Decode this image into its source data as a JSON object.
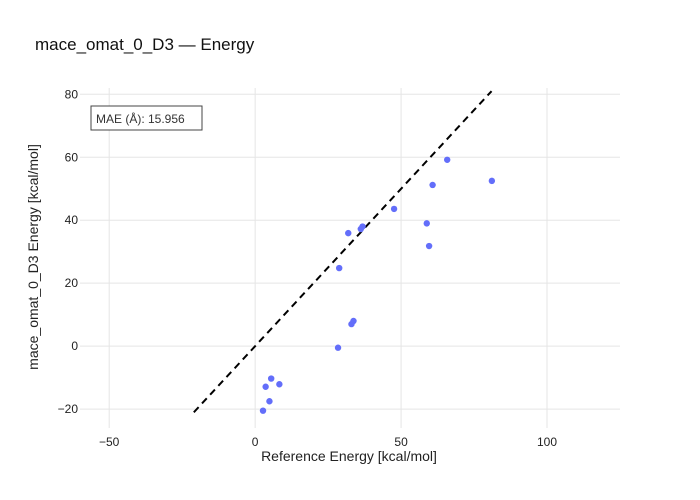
{
  "chart_data": {
    "type": "scatter",
    "title": "mace_omat_0_D3 — Energy",
    "xlabel": "Reference Energy [kcal/mol]",
    "ylabel": "mace_omat_0_D3 Energy [kcal/mol]",
    "xlim": [
      -60,
      125
    ],
    "ylim": [
      -26,
      82
    ],
    "x_ticks": [
      -50,
      0,
      50,
      100
    ],
    "y_ticks": [
      -20,
      0,
      20,
      40,
      60,
      80
    ],
    "x_tick_labels": [
      "−50",
      "0",
      "50",
      "100"
    ],
    "y_tick_labels": [
      "−20",
      "0",
      "20",
      "40",
      "60",
      "80"
    ],
    "grid": true,
    "annotation": "MAE (Å): 15.956",
    "marker_color": "#636efa",
    "parity_line": {
      "from": [
        -21,
        -21
      ],
      "to": [
        81,
        81
      ],
      "style": "dashed",
      "color": "#000000"
    },
    "series": [
      {
        "points": [
          [
            2.7,
            -20.5
          ],
          [
            4.9,
            -17.5
          ],
          [
            3.6,
            -12.9
          ],
          [
            5.5,
            -10.3
          ],
          [
            8.3,
            -12.1
          ],
          [
            28.4,
            -0.5
          ],
          [
            33.0,
            7.0
          ],
          [
            33.7,
            8.0
          ],
          [
            28.8,
            24.8
          ],
          [
            31.9,
            35.9
          ],
          [
            36.2,
            37.2
          ],
          [
            36.8,
            38.0
          ],
          [
            47.6,
            43.6
          ],
          [
            58.8,
            39.0
          ],
          [
            59.6,
            31.8
          ],
          [
            60.8,
            51.2
          ],
          [
            65.8,
            59.2
          ],
          [
            81.1,
            52.5
          ]
        ]
      }
    ]
  }
}
